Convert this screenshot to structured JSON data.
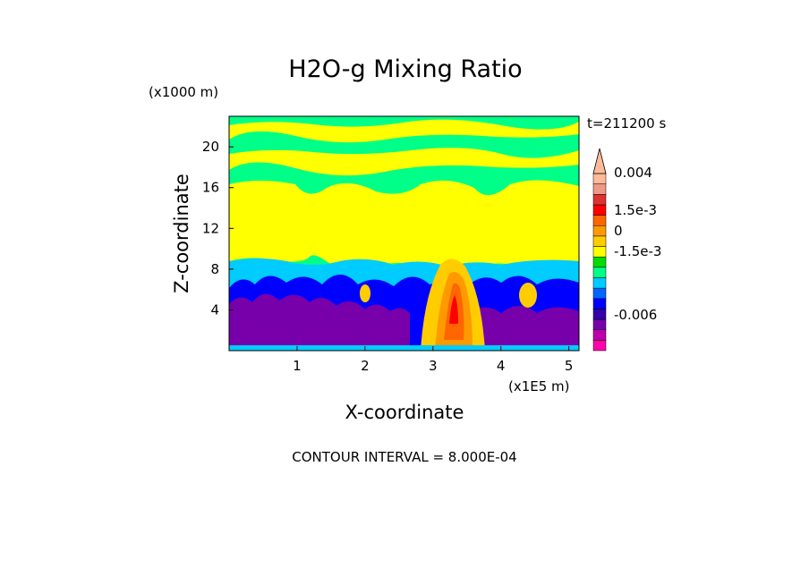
{
  "chart_data": {
    "type": "heatmap",
    "title": "H2O-g Mixing Ratio",
    "xlabel": "X-coordinate",
    "ylabel": "Z-coordinate",
    "x_unit": "(x1E5 m)",
    "y_unit": "(x1000 m)",
    "time_label": "t=211200 s",
    "footer": "CONTOUR INTERVAL = 8.000E-04",
    "xlim": [
      0,
      5.15
    ],
    "ylim": [
      0,
      23
    ],
    "x_ticks": [
      "1",
      "2",
      "3",
      "4",
      "5"
    ],
    "y_ticks": [
      "4",
      "8",
      "12",
      "16",
      "20"
    ],
    "colorbar": {
      "colors": [
        "#ff00aa",
        "#bb00aa",
        "#7700aa",
        "#3300aa",
        "#0000ff",
        "#0066ff",
        "#00ccff",
        "#00ff88",
        "#00dd00",
        "#ffff00",
        "#ffcc00",
        "#ff9900",
        "#ff6600",
        "#ff0000",
        "#dd3333",
        "#ee9988",
        "#ffbb99"
      ],
      "labels": [
        "0.004",
        "1.5e-3",
        "0",
        "-1.5e-3",
        "-0.006"
      ]
    }
  }
}
